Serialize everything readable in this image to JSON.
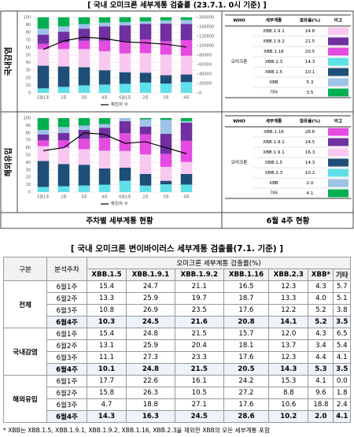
{
  "header": {
    "title": "[ 국내 오미크론 세부계통 검출률 (23.7.1. 0시 기준) ]"
  },
  "captions": [
    "주차별 세부계통 현황",
    "6월 4주 현황"
  ],
  "legend_table_header": [
    "WHO",
    "세부계통",
    "점유율(%)",
    "비고"
  ],
  "who": "오미크론",
  "panels": [
    {
      "label": "국내감염",
      "rows": [
        {
          "name": "XBB.1.9.1",
          "share": "24.8"
        },
        {
          "name": "XBB.1.9.2",
          "share": "21.5"
        },
        {
          "name": "XBB.1.16",
          "share": "20.5"
        },
        {
          "name": "XBB.2.3",
          "share": "14.3"
        },
        {
          "name": "XBB.1.5",
          "share": "10.1"
        },
        {
          "name": "XBB",
          "share": "5.3"
        },
        {
          "name": "기타",
          "share": "3.5"
        }
      ]
    },
    {
      "label": "해외유입",
      "rows": [
        {
          "name": "XBB.1.16",
          "share": "28.6"
        },
        {
          "name": "XBB.1.9.2",
          "share": "24.5"
        },
        {
          "name": "XBB.1.9.1",
          "share": "16.3"
        },
        {
          "name": "XBB.1.5",
          "share": "14.3"
        },
        {
          "name": "XBB.2.3",
          "share": "10.2"
        },
        {
          "name": "XBB",
          "share": "2.0"
        },
        {
          "name": "기타",
          "share": "4.1"
        }
      ]
    }
  ],
  "chart_data": [
    {
      "type": "stacked-bar-line",
      "categories": [
        "5월1주",
        "2주",
        "3주",
        "4주",
        "6월1주",
        "2주",
        "3주",
        "4주"
      ],
      "ylim": [
        0,
        100
      ],
      "yticks": [
        0,
        10,
        20,
        30,
        40,
        50,
        60,
        70,
        80,
        90,
        100
      ],
      "y2lim": [
        0,
        160000
      ],
      "y2ticks": [
        0,
        20000,
        40000,
        60000,
        80000,
        100000,
        120000,
        140000,
        160000
      ],
      "series": [
        {
          "name": "XBB.2.3",
          "color": "#5fe0e8",
          "values": [
            6,
            8,
            10,
            11,
            12.0,
            13.7,
            12.3,
            14.3
          ]
        },
        {
          "name": "XBB.1.5",
          "color": "#1f4e79",
          "values": [
            30,
            27,
            24,
            19,
            15.4,
            13.1,
            11.1,
            10.1
          ]
        },
        {
          "name": "XBB.1.9.1",
          "color": "#f8c8f0",
          "values": [
            22,
            23,
            24,
            25,
            24.8,
            25.9,
            27.3,
            24.8
          ]
        },
        {
          "name": "XBB.1.16",
          "color": "#e44be0",
          "values": [
            7,
            9,
            11,
            14,
            15.7,
            18.1,
            17.6,
            20.5
          ]
        },
        {
          "name": "XBB.1.9.2",
          "color": "#7030a0",
          "values": [
            12,
            14,
            16,
            19,
            21.5,
            20.4,
            23.3,
            21.5
          ]
        },
        {
          "name": "XBB",
          "color": "#9dc3e6",
          "values": [
            8,
            7,
            6,
            5,
            4.3,
            3.4,
            4.4,
            5.3
          ]
        },
        {
          "name": "기타",
          "color": "#00b050",
          "values": [
            15,
            12,
            9,
            7,
            6.5,
            5.4,
            4.1,
            3.5
          ]
        },
        {
          "name": "확진자 수",
          "color": "#000000",
          "axis": "y2",
          "values": [
            92000,
            110000,
            118000,
            115000,
            108000,
            106000,
            103000,
            97000
          ]
        }
      ]
    },
    {
      "type": "stacked-bar-line",
      "categories": [
        "5월1주",
        "2주",
        "3주",
        "4주",
        "6월1주",
        "2주",
        "3주",
        "4주"
      ],
      "ylim": [
        0,
        100
      ],
      "yticks": [
        0,
        10,
        20,
        30,
        40,
        50,
        60,
        70,
        80,
        90,
        100
      ],
      "y2lim": [
        0,
        500
      ],
      "series": [
        {
          "name": "XBB.2.3",
          "color": "#5fe0e8",
          "values": [
            7,
            8,
            9,
            10,
            15.3,
            8.8,
            10.6,
            10.2
          ]
        },
        {
          "name": "XBB.1.5",
          "color": "#1f4e79",
          "values": [
            35,
            30,
            28,
            22,
            17.7,
            15.8,
            4.7,
            14.3
          ]
        },
        {
          "name": "XBB.1.9.1",
          "color": "#f8c8f0",
          "values": [
            20,
            22,
            21,
            24,
            22.6,
            26.3,
            18.8,
            16.3
          ]
        },
        {
          "name": "XBB.1.16",
          "color": "#e44be0",
          "values": [
            8,
            10,
            14,
            17,
            24.2,
            27.2,
            17.6,
            28.6
          ]
        },
        {
          "name": "XBB.1.9.2",
          "color": "#7030a0",
          "values": [
            8,
            10,
            12,
            14,
            16.1,
            10.5,
            27.1,
            24.5
          ]
        },
        {
          "name": "XBB",
          "color": "#9dc3e6",
          "values": [
            6,
            8,
            6,
            5,
            4.1,
            9.6,
            18.8,
            2.0
          ]
        },
        {
          "name": "기타",
          "color": "#00b050",
          "values": [
            16,
            12,
            10,
            8,
            0.0,
            1.8,
            2.4,
            4.1
          ]
        },
        {
          "name": "확진자 수",
          "color": "#000000",
          "axis": "y2",
          "values": [
            280,
            300,
            400,
            390,
            330,
            340,
            300,
            260
          ]
        }
      ]
    }
  ],
  "table": {
    "title": "[ 국내 오미크론 변이바이러스 세부계통 검출률(7.1. 기준) ]",
    "group_header": "구분",
    "week_header": "분석주차",
    "span_header": "오미크론 세부계통 검출률(%)",
    "columns": [
      "XBB.1.5",
      "XBB.1.9.1",
      "XBB.1.9.2",
      "XBB.1.16",
      "XBB.2.3",
      "XBB*",
      "기타"
    ],
    "groups": [
      {
        "name": "전체",
        "rows": [
          {
            "week": "6월1주",
            "values": [
              "15.4",
              "24.7",
              "21.1",
              "16.5",
              "12.3",
              "4.3",
              "5.7"
            ]
          },
          {
            "week": "6월2주",
            "values": [
              "13.3",
              "25.9",
              "19.7",
              "18.7",
              "13.3",
              "4.0",
              "5.1"
            ]
          },
          {
            "week": "6월3주",
            "values": [
              "10.8",
              "26.9",
              "23.5",
              "17.6",
              "12.2",
              "5.2",
              "3.8"
            ]
          },
          {
            "week": "6월4주",
            "values": [
              "10.3",
              "24.5",
              "21.6",
              "20.8",
              "14.1",
              "5.2",
              "3.5"
            ]
          }
        ]
      },
      {
        "name": "국내감염",
        "rows": [
          {
            "week": "6월1주",
            "values": [
              "15.4",
              "24.8",
              "21.5",
              "15.7",
              "12.0",
              "4.3",
              "6.5"
            ]
          },
          {
            "week": "6월2주",
            "values": [
              "13.1",
              "25.9",
              "20.4",
              "18.1",
              "13.7",
              "3.4",
              "5.4"
            ]
          },
          {
            "week": "6월3주",
            "values": [
              "11.1",
              "27.3",
              "23.3",
              "17.6",
              "12.3",
              "4.4",
              "4.1"
            ]
          },
          {
            "week": "6월4주",
            "values": [
              "10.1",
              "24.8",
              "21.5",
              "20.5",
              "14.3",
              "5.3",
              "3.5"
            ]
          }
        ]
      },
      {
        "name": "해외유입",
        "rows": [
          {
            "week": "6월1주",
            "values": [
              "17.7",
              "22.6",
              "16.1",
              "24.2",
              "15.3",
              "4.1",
              "0.0"
            ]
          },
          {
            "week": "6월2주",
            "values": [
              "15.8",
              "26.3",
              "10.5",
              "27.2",
              "8.8",
              "9.6",
              "1.8"
            ]
          },
          {
            "week": "6월3주",
            "values": [
              "4.7",
              "18.8",
              "27.1",
              "17.6",
              "10.6",
              "18.8",
              "2.4"
            ]
          },
          {
            "week": "6월4주",
            "values": [
              "14.3",
              "16.3",
              "24.5",
              "28.6",
              "10.2",
              "2.0",
              "4.1"
            ]
          }
        ]
      }
    ]
  },
  "footnote": "* XBB는 XBB.1.5, XBB.1.9.1, XBB.1.9.2, XBB.1.16, XBB.2.3을 제외한 XBB의 모든 세부계통 포함"
}
